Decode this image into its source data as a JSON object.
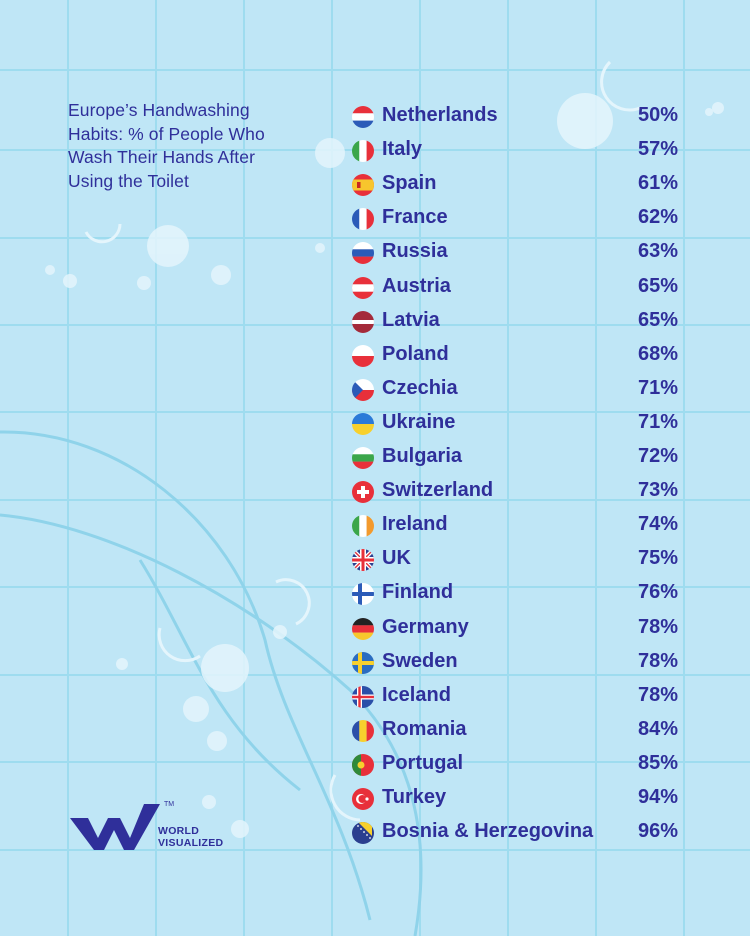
{
  "chart_data": {
    "type": "table",
    "title": "Europe’s Handwashing Habits: % of People Who Wash Their Hands After Using the Toilet",
    "rows": [
      {
        "country": "Netherlands",
        "value": "50%",
        "flag": "netherlands-flag"
      },
      {
        "country": "Italy",
        "value": "57%",
        "flag": "italy-flag"
      },
      {
        "country": "Spain",
        "value": "61%",
        "flag": "spain-flag"
      },
      {
        "country": "France",
        "value": "62%",
        "flag": "france-flag"
      },
      {
        "country": "Russia",
        "value": "63%",
        "flag": "russia-flag"
      },
      {
        "country": "Austria",
        "value": "65%",
        "flag": "austria-flag"
      },
      {
        "country": "Latvia",
        "value": "65%",
        "flag": "latvia-flag"
      },
      {
        "country": "Poland",
        "value": "68%",
        "flag": "poland-flag"
      },
      {
        "country": "Czechia",
        "value": "71%",
        "flag": "czechia-flag"
      },
      {
        "country": "Ukraine",
        "value": "71%",
        "flag": "ukraine-flag"
      },
      {
        "country": "Bulgaria",
        "value": "72%",
        "flag": "bulgaria-flag"
      },
      {
        "country": "Switzerland",
        "value": "73%",
        "flag": "switzerland-flag"
      },
      {
        "country": "Ireland",
        "value": "74%",
        "flag": "ireland-flag"
      },
      {
        "country": "UK",
        "value": "75%",
        "flag": "uk-flag"
      },
      {
        "country": "Finland",
        "value": "76%",
        "flag": "finland-flag"
      },
      {
        "country": "Germany",
        "value": "78%",
        "flag": "germany-flag"
      },
      {
        "country": "Sweden",
        "value": "78%",
        "flag": "sweden-flag"
      },
      {
        "country": "Iceland",
        "value": "78%",
        "flag": "iceland-flag"
      },
      {
        "country": "Romania",
        "value": "84%",
        "flag": "romania-flag"
      },
      {
        "country": "Portugal",
        "value": "85%",
        "flag": "portugal-flag"
      },
      {
        "country": "Turkey",
        "value": "94%",
        "flag": "turkey-flag"
      },
      {
        "country": "Bosnia & Herzegovina",
        "value": "96%",
        "flag": "bosnia-and-herzegovina-flag"
      }
    ]
  },
  "title_display": "Europe’s Handwashing\nHabits: % of People Who\nWash Their Hands After\nUsing the Toilet",
  "logo": {
    "text": "WORLD\nVISUALIZED",
    "tm": "TM",
    "icon": "world-visualized-logo-icon"
  },
  "colors": {
    "background": "#bfe6f6",
    "grid": "#9edcef",
    "text": "#2f2f9a"
  }
}
